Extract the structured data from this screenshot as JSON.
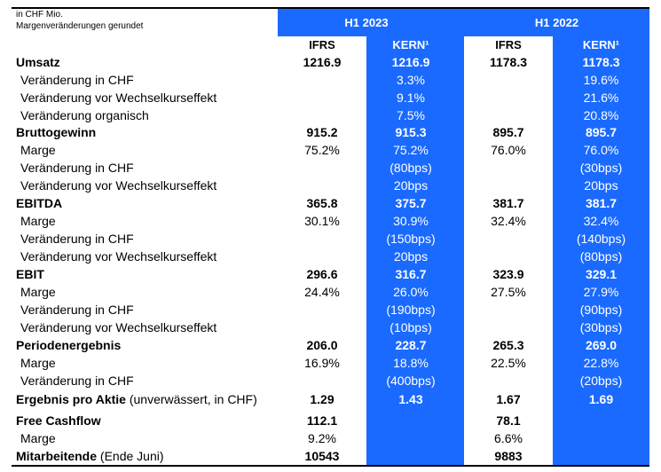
{
  "notes": {
    "line1": "in CHF Mio.",
    "line2": "Margenveränderungen gerundet"
  },
  "header": {
    "group1": "H1 2023",
    "group2": "H1 2022",
    "ifrs": "IFRS",
    "kern": "KERN¹"
  },
  "colors": {
    "accent_blue": "#1a6aff",
    "rule": "#000000"
  },
  "rows": [
    {
      "label": "Umsatz",
      "suffix": "",
      "bold": true,
      "indent": false,
      "values": [
        "1216.9",
        "1216.9",
        "1178.3",
        "1178.3"
      ]
    },
    {
      "label": "Veränderung in CHF",
      "suffix": "",
      "bold": false,
      "indent": true,
      "values": [
        "",
        "3.3%",
        "",
        "19.6%"
      ]
    },
    {
      "label": "Veränderung vor Wechselkurseffekt",
      "suffix": "",
      "bold": false,
      "indent": true,
      "values": [
        "",
        "9.1%",
        "",
        "21.6%"
      ]
    },
    {
      "label": "Veränderung organisch",
      "suffix": "",
      "bold": false,
      "indent": true,
      "values": [
        "",
        "7.5%",
        "",
        "20.8%"
      ]
    },
    {
      "label": "Bruttogewinn",
      "suffix": "",
      "bold": true,
      "indent": false,
      "values": [
        "915.2",
        "915.3",
        "895.7",
        "895.7"
      ]
    },
    {
      "label": "Marge",
      "suffix": "",
      "bold": false,
      "indent": true,
      "values": [
        "75.2%",
        "75.2%",
        "76.0%",
        "76.0%"
      ]
    },
    {
      "label": "Veränderung in CHF",
      "suffix": "",
      "bold": false,
      "indent": true,
      "values": [
        "",
        "(80bps)",
        "",
        "(30bps)"
      ]
    },
    {
      "label": "Veränderung vor Wechselkurseffekt",
      "suffix": "",
      "bold": false,
      "indent": true,
      "values": [
        "",
        "20bps",
        "",
        "20bps"
      ]
    },
    {
      "label": "EBITDA",
      "suffix": "",
      "bold": true,
      "indent": false,
      "values": [
        "365.8",
        "375.7",
        "381.7",
        "381.7"
      ]
    },
    {
      "label": "Marge",
      "suffix": "",
      "bold": false,
      "indent": true,
      "values": [
        "30.1%",
        "30.9%",
        "32.4%",
        "32.4%"
      ]
    },
    {
      "label": "Veränderung in CHF",
      "suffix": "",
      "bold": false,
      "indent": true,
      "values": [
        "",
        "(150bps)",
        "",
        "(140bps)"
      ]
    },
    {
      "label": "Veränderung vor Wechselkurseffekt",
      "suffix": "",
      "bold": false,
      "indent": true,
      "values": [
        "",
        "20bps",
        "",
        "(80bps)"
      ]
    },
    {
      "label": "EBIT",
      "suffix": "",
      "bold": true,
      "indent": false,
      "values": [
        "296.6",
        "316.7",
        "323.9",
        "329.1"
      ]
    },
    {
      "label": "Marge",
      "suffix": "",
      "bold": false,
      "indent": true,
      "values": [
        "24.4%",
        "26.0%",
        "27.5%",
        "27.9%"
      ]
    },
    {
      "label": "Veränderung in CHF",
      "suffix": "",
      "bold": false,
      "indent": true,
      "values": [
        "",
        "(190bps)",
        "",
        "(90bps)"
      ]
    },
    {
      "label": "Veränderung vor Wechselkurseffekt",
      "suffix": "",
      "bold": false,
      "indent": true,
      "values": [
        "",
        "(10bps)",
        "",
        "(30bps)"
      ]
    },
    {
      "label": "Periodenergebnis",
      "suffix": "",
      "bold": true,
      "indent": false,
      "values": [
        "206.0",
        "228.7",
        "265.3",
        "269.0"
      ]
    },
    {
      "label": "Marge",
      "suffix": "",
      "bold": false,
      "indent": true,
      "values": [
        "16.9%",
        "18.8%",
        "22.5%",
        "22.8%"
      ]
    },
    {
      "label": "Veränderung in CHF",
      "suffix": "",
      "bold": false,
      "indent": true,
      "values": [
        "",
        "(400bps)",
        "",
        "(20bps)"
      ]
    },
    {
      "label": "Ergebnis pro Aktie",
      "suffix": " (unverwässert, in CHF)",
      "bold": true,
      "indent": false,
      "values": [
        "1.29",
        "1.43",
        "1.67",
        "1.69"
      ]
    },
    {
      "label": "Free Cashflow",
      "suffix": "",
      "bold": true,
      "indent": false,
      "values": [
        "112.1",
        "",
        "78.1",
        ""
      ]
    },
    {
      "label": "Marge",
      "suffix": "",
      "bold": false,
      "indent": true,
      "values": [
        "9.2%",
        "",
        "6.6%",
        ""
      ]
    },
    {
      "label": "Mitarbeitende",
      "suffix": " (Ende Juni)",
      "bold": true,
      "indent": false,
      "values": [
        "10543",
        "",
        "9883",
        ""
      ]
    }
  ]
}
